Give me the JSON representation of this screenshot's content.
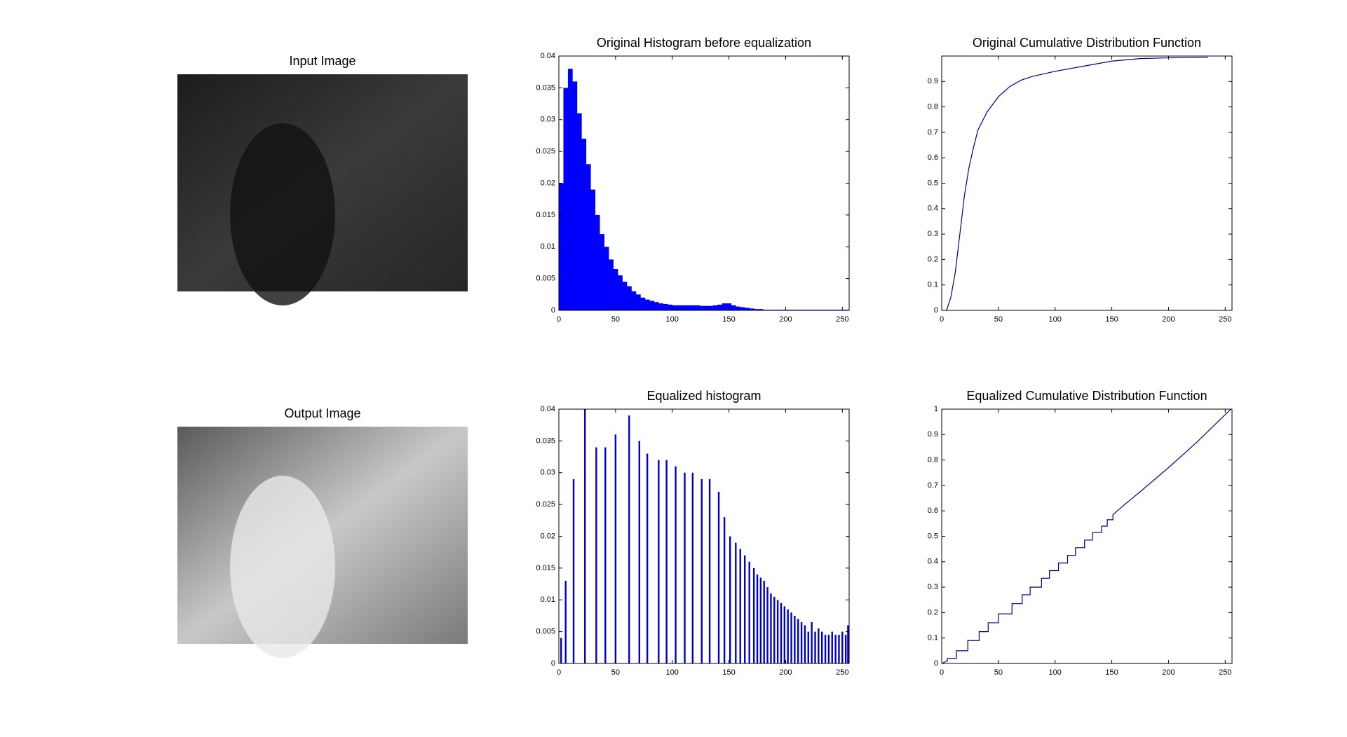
{
  "chart_data": [
    {
      "type": "image",
      "title": "Input Image",
      "tone": "dark"
    },
    {
      "type": "histogram",
      "title": "Original Histogram before equalization",
      "color": "#0000ff",
      "bins": [
        0,
        4,
        8,
        12,
        16,
        20,
        24,
        28,
        32,
        36,
        40,
        44,
        48,
        52,
        56,
        60,
        64,
        68,
        72,
        76,
        80,
        84,
        88,
        92,
        96,
        100,
        104,
        108,
        112,
        116,
        120,
        124,
        128,
        132,
        136,
        140,
        144,
        148,
        152,
        156,
        160,
        164,
        168,
        172,
        176,
        180,
        184,
        188,
        192,
        196,
        200,
        204,
        208,
        212,
        216,
        220,
        224,
        228,
        232,
        236,
        240,
        244,
        248,
        252,
        256
      ],
      "counts": [
        0.02,
        0.035,
        0.038,
        0.036,
        0.031,
        0.027,
        0.023,
        0.019,
        0.015,
        0.012,
        0.01,
        0.008,
        0.0065,
        0.0055,
        0.0045,
        0.0038,
        0.003,
        0.0025,
        0.002,
        0.0017,
        0.0015,
        0.0013,
        0.0011,
        0.001,
        0.0009,
        0.0008,
        0.0008,
        0.0008,
        0.0008,
        0.0008,
        0.0008,
        0.0007,
        0.0007,
        0.0007,
        0.0008,
        0.0009,
        0.0011,
        0.0011,
        0.0008,
        0.0006,
        0.0005,
        0.0004,
        0.0003,
        0.0002,
        0.0002,
        0.0001,
        0.0001,
        0.0001,
        0.0001,
        0.0001,
        0.0001,
        0.0001,
        0.0001,
        0.0001,
        0.0001,
        0.0001,
        0.0001,
        0.0001,
        0.0001,
        0.0001,
        0.0001,
        0.0001,
        0.0001,
        0.0001
      ],
      "xlim": [
        0,
        256
      ],
      "xticks": [
        0,
        50,
        100,
        150,
        200,
        250
      ],
      "ylim": [
        0,
        0.04
      ],
      "yticks": [
        0,
        0.005,
        0.01,
        0.015,
        0.02,
        0.025,
        0.03,
        0.035,
        0.04
      ]
    },
    {
      "type": "line",
      "title": "Original Cumulative Distribution Function",
      "color": "#00008b",
      "x": [
        4,
        5,
        8,
        12,
        16,
        20,
        24,
        28,
        32,
        40,
        50,
        60,
        70,
        80,
        100,
        125,
        150,
        175,
        200,
        235
      ],
      "values": [
        0,
        0.01,
        0.05,
        0.15,
        0.3,
        0.45,
        0.56,
        0.64,
        0.71,
        0.78,
        0.84,
        0.88,
        0.905,
        0.92,
        0.94,
        0.96,
        0.98,
        0.99,
        0.993,
        0.995
      ],
      "xlim": [
        0,
        256
      ],
      "xticks": [
        0,
        50,
        100,
        150,
        200,
        250
      ],
      "ylim": [
        0,
        1
      ],
      "yticks": [
        0,
        0.1,
        0.2,
        0.3,
        0.4,
        0.5,
        0.6,
        0.7,
        0.8,
        0.9
      ]
    },
    {
      "type": "image",
      "title": "Output Image",
      "tone": "light"
    },
    {
      "type": "stem",
      "title": "Equalized histogram",
      "color": "#0000cd",
      "x": [
        2,
        6,
        13,
        23,
        33,
        41,
        50,
        62,
        71,
        78,
        88,
        95,
        103,
        111,
        118,
        126,
        133,
        141,
        146,
        151,
        156,
        160,
        164,
        168,
        172,
        175,
        178,
        181,
        184,
        187,
        190,
        193,
        196,
        199,
        202,
        205,
        208,
        211,
        214,
        217,
        220,
        223,
        226,
        229,
        232,
        235,
        238,
        241,
        244,
        247,
        250,
        253,
        255
      ],
      "values": [
        0.004,
        0.013,
        0.029,
        0.04,
        0.034,
        0.034,
        0.036,
        0.039,
        0.035,
        0.033,
        0.032,
        0.032,
        0.031,
        0.03,
        0.03,
        0.029,
        0.029,
        0.027,
        0.023,
        0.02,
        0.019,
        0.018,
        0.017,
        0.016,
        0.015,
        0.014,
        0.0135,
        0.013,
        0.012,
        0.011,
        0.0105,
        0.01,
        0.0095,
        0.009,
        0.0085,
        0.008,
        0.0075,
        0.007,
        0.0065,
        0.006,
        0.005,
        0.0065,
        0.005,
        0.0055,
        0.005,
        0.0045,
        0.0045,
        0.005,
        0.0045,
        0.0045,
        0.005,
        0.0045,
        0.006
      ],
      "xlim": [
        0,
        256
      ],
      "xticks": [
        0,
        50,
        100,
        150,
        200,
        250
      ],
      "ylim": [
        0,
        0.04
      ],
      "yticks": [
        0,
        0.005,
        0.01,
        0.015,
        0.02,
        0.025,
        0.03,
        0.035,
        0.04
      ]
    },
    {
      "type": "line",
      "title": "Equalized Cumulative Distribution Function",
      "color": "#00008b",
      "x": [
        0,
        5,
        5,
        13,
        13,
        23,
        23,
        33,
        33,
        41,
        41,
        50,
        50,
        62,
        62,
        71,
        71,
        78,
        78,
        88,
        88,
        95,
        95,
        103,
        103,
        111,
        111,
        118,
        118,
        126,
        126,
        133,
        133,
        141,
        141,
        146,
        146,
        151,
        151,
        160,
        175,
        200,
        225,
        255
      ],
      "values": [
        0,
        0.01,
        0.02,
        0.02,
        0.05,
        0.05,
        0.09,
        0.09,
        0.125,
        0.125,
        0.16,
        0.16,
        0.195,
        0.195,
        0.235,
        0.235,
        0.27,
        0.27,
        0.3,
        0.3,
        0.335,
        0.335,
        0.365,
        0.365,
        0.395,
        0.395,
        0.425,
        0.425,
        0.455,
        0.455,
        0.485,
        0.485,
        0.515,
        0.515,
        0.54,
        0.54,
        0.565,
        0.565,
        0.585,
        0.62,
        0.675,
        0.77,
        0.87,
        1
      ],
      "xlim": [
        0,
        256
      ],
      "xticks": [
        0,
        50,
        100,
        150,
        200,
        250
      ],
      "ylim": [
        0,
        1
      ],
      "yticks": [
        0,
        0.1,
        0.2,
        0.3,
        0.4,
        0.5,
        0.6,
        0.7,
        0.8,
        0.9,
        1
      ]
    }
  ]
}
